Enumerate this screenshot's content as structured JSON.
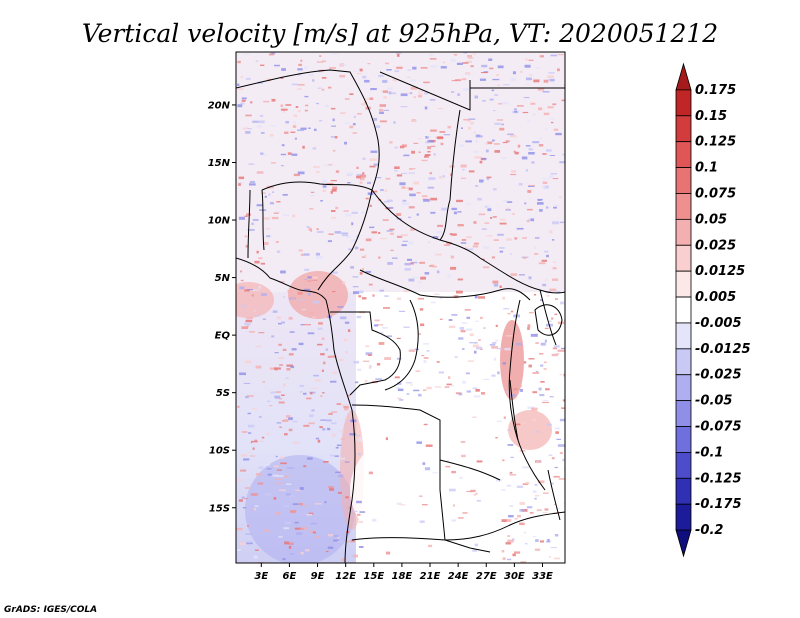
{
  "title": "Vertical velocity [m/s] at 925hPa, VT: 2020051212",
  "credit": "GrADS: IGES/COLA",
  "map": {
    "lat_labels": [
      "20N",
      "15N",
      "10N",
      "5N",
      "EQ",
      "5S",
      "10S",
      "15S"
    ],
    "lon_labels": [
      "3E",
      "6E",
      "9E",
      "12E",
      "15E",
      "18E",
      "21E",
      "24E",
      "27E",
      "30E",
      "33E"
    ],
    "lat_values": [
      20,
      15,
      10,
      5,
      0,
      -5,
      -10,
      -15
    ],
    "lon_values": [
      3,
      6,
      9,
      12,
      15,
      18,
      21,
      24,
      27,
      30,
      33
    ],
    "lon_range": [
      0.3,
      35.4
    ],
    "lat_range": [
      -19.8,
      24.6
    ]
  },
  "colorbar": {
    "labels": [
      "0.175",
      "0.15",
      "0.125",
      "0.1",
      "0.075",
      "0.05",
      "0.025",
      "0.0125",
      "0.005",
      "-0.005",
      "-0.0125",
      "-0.025",
      "-0.05",
      "-0.075",
      "-0.1",
      "-0.125",
      "-0.175",
      "-0.2"
    ],
    "colors": [
      "#a51a1a",
      "#c02626",
      "#d33c3c",
      "#e05555",
      "#e77373",
      "#ee9090",
      "#f4b0b0",
      "#f9cfcf",
      "#fde8e8",
      "#ffffff",
      "#e4e4fb",
      "#c9c9f6",
      "#aeaef0",
      "#8f8fe8",
      "#6f6fdd",
      "#4d4dcc",
      "#3030b5",
      "#1c1c9b",
      "#0e0e7c"
    ]
  }
}
